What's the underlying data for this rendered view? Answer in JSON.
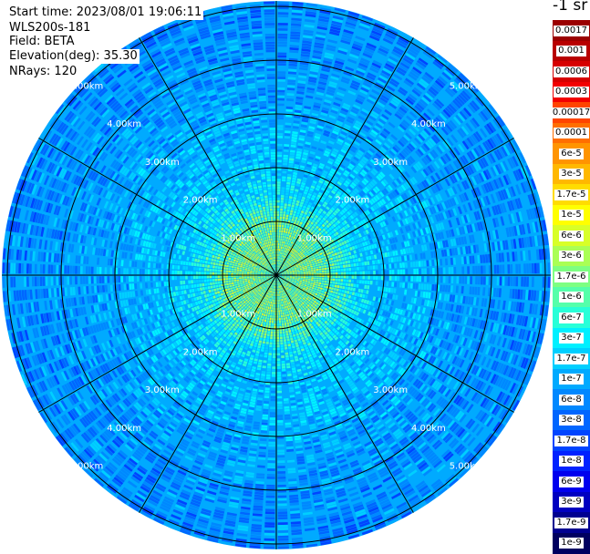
{
  "header": {
    "start_time": "Start time: 2023/08/01 19:06:11",
    "instrument": "WLS200s-181",
    "field": "Field: BETA",
    "elevation": "Elevation(deg): 35.30",
    "nrays": "NRays: 120"
  },
  "colorbar": {
    "unit_label": "-1 sr",
    "entries": [
      {
        "label": "0.0017",
        "color": "#9b0000"
      },
      {
        "label": "0.001",
        "color": "#b80000"
      },
      {
        "label": "0.0006",
        "color": "#d60000"
      },
      {
        "label": "0.0003",
        "color": "#f20000"
      },
      {
        "label": "0.00017",
        "color": "#ff4400"
      },
      {
        "label": "0.0001",
        "color": "#ff6e00"
      },
      {
        "label": "6e-5",
        "color": "#ff9400"
      },
      {
        "label": "3e-5",
        "color": "#ffb800"
      },
      {
        "label": "1.7e-5",
        "color": "#ffdc00"
      },
      {
        "label": "1e-5",
        "color": "#ffff00"
      },
      {
        "label": "6e-6",
        "color": "#d8ff28"
      },
      {
        "label": "3e-6",
        "color": "#aaff55"
      },
      {
        "label": "1.7e-6",
        "color": "#7dff82"
      },
      {
        "label": "1e-6",
        "color": "#55ffaa"
      },
      {
        "label": "6e-7",
        "color": "#28ffd8"
      },
      {
        "label": "3e-7",
        "color": "#00f0ff"
      },
      {
        "label": "1.7e-7",
        "color": "#00cfff"
      },
      {
        "label": "1e-7",
        "color": "#00aaff"
      },
      {
        "label": "6e-8",
        "color": "#0088ff"
      },
      {
        "label": "3e-8",
        "color": "#0066ff"
      },
      {
        "label": "1.7e-8",
        "color": "#0044ff"
      },
      {
        "label": "1e-8",
        "color": "#0022ff"
      },
      {
        "label": "6e-9",
        "color": "#0000ee"
      },
      {
        "label": "3e-9",
        "color": "#0000c0"
      },
      {
        "label": "1.7e-9",
        "color": "#000090"
      },
      {
        "label": "1e-9",
        "color": "#000060"
      }
    ]
  },
  "chart_data": {
    "type": "heatmap",
    "projection": "polar",
    "title": "",
    "nrays": 120,
    "field": "BETA",
    "range_rings_km": [
      1,
      2,
      3,
      4,
      5
    ],
    "ring_labels": [
      "1.00km",
      "2.00km",
      "3.00km",
      "4.00km",
      "5.00km"
    ],
    "spoke_angles_deg": [
      0,
      30,
      60,
      90,
      120,
      150,
      180,
      210,
      240,
      270,
      300,
      330
    ],
    "range_max_km": 5.1,
    "gate_spacing_km": 0.05,
    "radial_profile": {
      "range_km": [
        0.0,
        0.5,
        1.0,
        1.5,
        2.0,
        3.0,
        4.0,
        5.1
      ],
      "beta": [
        1.7e-06,
        3e-06,
        1.7e-06,
        3e-07,
        1.7e-07,
        1e-07,
        6e-08,
        5e-08
      ]
    },
    "colorscale": "log",
    "colorscale_range": [
      1e-09,
      0.0017
    ]
  }
}
